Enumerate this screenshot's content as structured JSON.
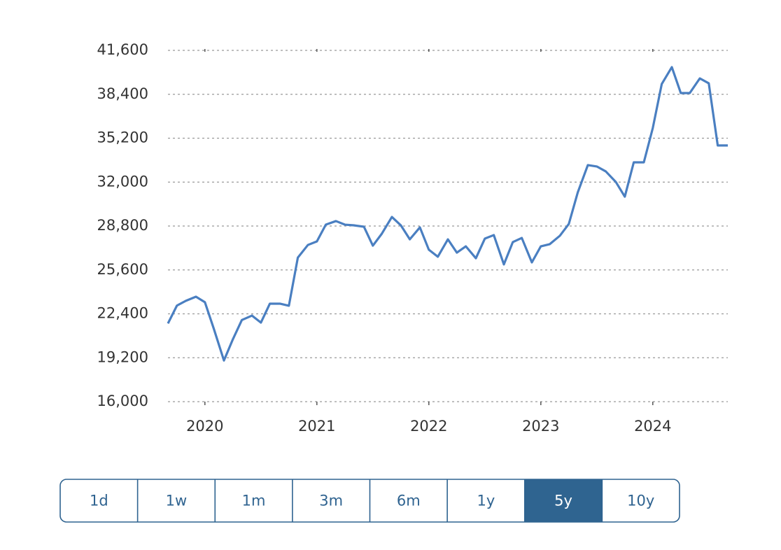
{
  "chart_data": {
    "type": "line",
    "x": [
      2019.67,
      2019.75,
      2019.83,
      2019.92,
      2020.0,
      2020.08,
      2020.17,
      2020.25,
      2020.33,
      2020.42,
      2020.5,
      2020.58,
      2020.67,
      2020.75,
      2020.83,
      2020.92,
      2021.0,
      2021.08,
      2021.17,
      2021.25,
      2021.33,
      2021.42,
      2021.5,
      2021.58,
      2021.67,
      2021.75,
      2021.83,
      2021.92,
      2022.0,
      2022.08,
      2022.17,
      2022.25,
      2022.33,
      2022.42,
      2022.5,
      2022.58,
      2022.67,
      2022.75,
      2022.83,
      2022.92,
      2023.0,
      2023.08,
      2023.17,
      2023.25,
      2023.33,
      2023.42,
      2023.5,
      2023.58,
      2023.67,
      2023.75,
      2023.83,
      2023.92,
      2024.0,
      2024.08,
      2024.17,
      2024.25,
      2024.33,
      2024.42,
      2024.5,
      2024.58,
      2024.67
    ],
    "series": [
      {
        "color": "#4a7fc1",
        "values": [
          21700,
          23000,
          23350,
          23650,
          23250,
          21300,
          19000,
          20550,
          21950,
          22270,
          21760,
          23140,
          23140,
          22990,
          26500,
          27420,
          27680,
          28900,
          29160,
          28900,
          28850,
          28750,
          27370,
          28240,
          29460,
          28850,
          27830,
          28700,
          27070,
          26560,
          27830,
          26860,
          27320,
          26450,
          27880,
          28140,
          26000,
          27630,
          27930,
          26150,
          27320,
          27480,
          28090,
          28950,
          31250,
          33240,
          33140,
          32780,
          32010,
          30940,
          33440,
          33440,
          35940,
          39150,
          40380,
          38490,
          38490,
          39560,
          39200,
          34670,
          34670
        ]
      }
    ],
    "xlim": [
      2019.67,
      2024.67
    ],
    "xticks": [
      2020,
      2021,
      2022,
      2023,
      2024
    ],
    "ylim": [
      16000,
      41600
    ],
    "yticks": [
      {
        "value": 16000,
        "label": "16,000"
      },
      {
        "value": 19200,
        "label": "19,200"
      },
      {
        "value": 22400,
        "label": "22,400"
      },
      {
        "value": 25600,
        "label": "25,600"
      },
      {
        "value": 28800,
        "label": "28,800"
      },
      {
        "value": 32000,
        "label": "32,000"
      },
      {
        "value": 35200,
        "label": "35,200"
      },
      {
        "value": 38400,
        "label": "38,400"
      },
      {
        "value": 41600,
        "label": "41,600"
      }
    ],
    "grid": true
  },
  "range_buttons": {
    "options": [
      "1d",
      "1w",
      "1m",
      "3m",
      "6m",
      "1y",
      "5y",
      "10y"
    ],
    "selected": "5y"
  }
}
